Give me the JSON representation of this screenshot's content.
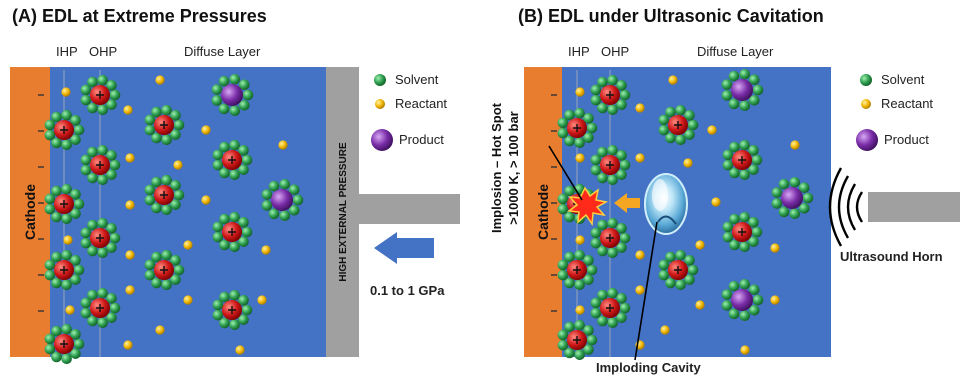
{
  "panel_a": {
    "title": "(A) EDL at Extreme Pressures",
    "layer_ihp": "IHP",
    "layer_ohp": "OHP",
    "layer_diffuse": "Diffuse Layer",
    "electrode": "Cathode",
    "pressure_wall": "HIGH EXTERNAL PRESSURE",
    "pressure_value": "0.1 to 1 GPa",
    "legend": {
      "solvent": "Solvent",
      "reactant": "Reactant",
      "product": "Product"
    }
  },
  "panel_b": {
    "title": "(B) EDL under Ultrasonic Cavitation",
    "layer_ihp": "IHP",
    "layer_ohp": "OHP",
    "layer_diffuse": "Diffuse Layer",
    "electrode": "Cathode",
    "hot_spot_line1": "Implosion – Hot Spot",
    "hot_spot_line2": ">1000 K, > 100 bar",
    "cavity_label": "Imploding Cavity",
    "horn_label": "Ultrasound Horn",
    "legend": {
      "solvent": "Solvent",
      "reactant": "Reactant",
      "product": "Product"
    }
  },
  "colors": {
    "electrolyte": "#4472c4",
    "cathode": "#e87d2f",
    "solvent": "#2e9e4f",
    "reactant": "#f2b705",
    "cation": "#d11a1a",
    "product": "#7a2da8",
    "wall": "#a0a0a0",
    "arrow_blue": "#4472c4",
    "arrow_orange": "#f5a623",
    "spark": "#ff2a1a"
  }
}
